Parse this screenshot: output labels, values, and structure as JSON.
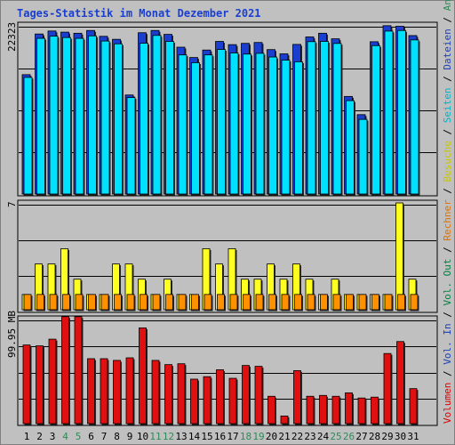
{
  "title": "Tages-Statistik im Monat Dezember 2021",
  "right_legend": [
    {
      "text": "Volumen",
      "color": "#dd0000"
    },
    {
      "text": " / ",
      "color": "#000000"
    },
    {
      "text": "Vol. In",
      "color": "#1a3eb8"
    },
    {
      "text": " / ",
      "color": "#000000"
    },
    {
      "text": "Vol. Out",
      "color": "#008040"
    },
    {
      "text": " / ",
      "color": "#000000"
    },
    {
      "text": "Rechner",
      "color": "#e07000"
    },
    {
      "text": " / ",
      "color": "#000000"
    },
    {
      "text": "Besuche",
      "color": "#c8c800"
    },
    {
      "text": " / ",
      "color": "#000000"
    },
    {
      "text": "Seiten",
      "color": "#00b4c8"
    },
    {
      "text": " / ",
      "color": "#000000"
    },
    {
      "text": "Dateien",
      "color": "#1a3eb8"
    },
    {
      "text": " / ",
      "color": "#000000"
    },
    {
      "text": "Anfragen",
      "color": "#2e8b57"
    }
  ],
  "colors": {
    "anfragen": "#1a3ed0",
    "dateien": "#1a3ed0",
    "seiten": "#00e0ff",
    "rechner": "#ff9000",
    "besuche": "#ffff20",
    "volumen": "#e01010",
    "day_normal": "#000000",
    "day_weekend": "#2e8b57"
  },
  "chart_data": [
    {
      "type": "bar",
      "panel": "top",
      "ylabel": "22323",
      "ymax": 22323,
      "categories": [
        "1",
        "2",
        "3",
        "4",
        "5",
        "6",
        "7",
        "8",
        "9",
        "10",
        "11",
        "12",
        "13",
        "14",
        "15",
        "16",
        "17",
        "18",
        "19",
        "20",
        "21",
        "22",
        "23",
        "24",
        "25",
        "26",
        "27",
        "28",
        "29",
        "30",
        "31"
      ],
      "series": [
        {
          "name": "Anfragen",
          "values": [
            15928,
            21350,
            21750,
            21600,
            21450,
            21820,
            21040,
            20640,
            13210,
            21520,
            21820,
            21300,
            19590,
            18210,
            19210,
            20360,
            19930,
            20100,
            20220,
            19270,
            18700,
            19960,
            20960,
            21450,
            20710,
            13020,
            10590,
            20320,
            22460,
            22380,
            21140
          ]
        },
        {
          "name": "Seiten",
          "values": [
            15560,
            20770,
            21060,
            20880,
            20770,
            21100,
            20410,
            20040,
            12870,
            20120,
            21160,
            20360,
            18560,
            17520,
            18560,
            19290,
            18820,
            18670,
            18770,
            18280,
            17860,
            17640,
            20330,
            20360,
            20090,
            12460,
            9960,
            19800,
            21740,
            21820,
            20560
          ]
        }
      ]
    },
    {
      "type": "bar",
      "panel": "middle",
      "ylabel": "7",
      "ymax": 7,
      "categories": [
        "1",
        "2",
        "3",
        "4",
        "5",
        "6",
        "7",
        "8",
        "9",
        "10",
        "11",
        "12",
        "13",
        "14",
        "15",
        "16",
        "17",
        "18",
        "19",
        "20",
        "21",
        "22",
        "23",
        "24",
        "25",
        "26",
        "27",
        "28",
        "29",
        "30",
        "31"
      ],
      "series": [
        {
          "name": "Besuche",
          "values": [
            1,
            3,
            3,
            4,
            2,
            1,
            1,
            3,
            3,
            2,
            1,
            2,
            1,
            1,
            4,
            3,
            4,
            2,
            2,
            3,
            2,
            3,
            2,
            1,
            2,
            1,
            1,
            1,
            1,
            7,
            2
          ]
        },
        {
          "name": "Rechner",
          "values": [
            1,
            1,
            1,
            1,
            1,
            1,
            1,
            1,
            1,
            1,
            1,
            1,
            1,
            1,
            1,
            1,
            1,
            1,
            1,
            1,
            1,
            1,
            1,
            1,
            1,
            1,
            1,
            1,
            1,
            1,
            1
          ]
        }
      ]
    },
    {
      "type": "bar",
      "panel": "bottom",
      "ylabel": "99.95 MB",
      "ymax": 99.95,
      "categories": [
        "1",
        "2",
        "3",
        "4",
        "5",
        "6",
        "7",
        "8",
        "9",
        "10",
        "11",
        "12",
        "13",
        "14",
        "15",
        "16",
        "17",
        "18",
        "19",
        "20",
        "21",
        "22",
        "23",
        "24",
        "25",
        "26",
        "27",
        "28",
        "29",
        "30",
        "31"
      ],
      "weekend_days": [
        "4",
        "5",
        "11",
        "12",
        "18",
        "19",
        "25",
        "26"
      ],
      "series": [
        {
          "name": "Volumen",
          "values": [
            73.0,
            72.2,
            78.4,
            99.3,
            99.3,
            60.3,
            60.3,
            58.7,
            61.1,
            88.9,
            58.7,
            54.8,
            55.6,
            41.3,
            43.6,
            50.0,
            42.1,
            54.0,
            53.2,
            25.4,
            7.1,
            49.2,
            25.4,
            26.2,
            25.4,
            28.6,
            23.8,
            24.6,
            65.1,
            76.2,
            32.5
          ]
        }
      ]
    }
  ]
}
